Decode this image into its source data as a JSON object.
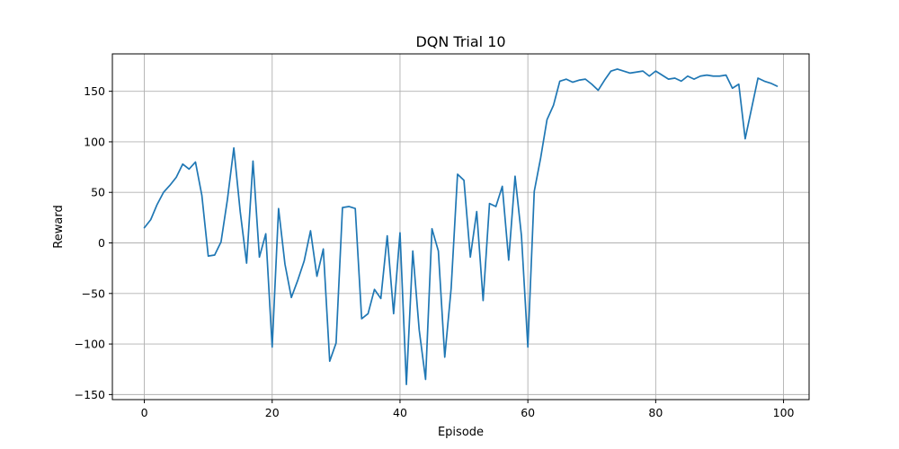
{
  "chart_data": {
    "type": "line",
    "title": "DQN Trial 10",
    "xlabel": "Episode",
    "ylabel": "Reward",
    "xlim": [
      -5,
      104
    ],
    "ylim": [
      -155,
      187
    ],
    "xticks": [
      0,
      20,
      40,
      60,
      80,
      100
    ],
    "yticks": [
      -150,
      -100,
      -50,
      0,
      50,
      100,
      150
    ],
    "grid": true,
    "series": [
      {
        "color": "#1f77b4",
        "x": [
          0,
          1,
          2,
          3,
          4,
          5,
          6,
          7,
          8,
          9,
          10,
          11,
          12,
          13,
          14,
          15,
          16,
          17,
          18,
          19,
          20,
          21,
          22,
          23,
          24,
          25,
          26,
          27,
          28,
          29,
          30,
          31,
          32,
          33,
          34,
          35,
          36,
          37,
          38,
          39,
          40,
          41,
          42,
          43,
          44,
          45,
          46,
          47,
          48,
          49,
          50,
          51,
          52,
          53,
          54,
          55,
          56,
          57,
          58,
          59,
          60,
          61,
          62,
          63,
          64,
          65,
          66,
          67,
          68,
          69,
          70,
          71,
          72,
          73,
          74,
          75,
          76,
          77,
          78,
          79,
          80,
          81,
          82,
          83,
          84,
          85,
          86,
          87,
          88,
          89,
          90,
          91,
          92,
          93,
          94,
          95,
          96,
          97,
          98,
          99
        ],
        "y": [
          15,
          23,
          38,
          50,
          57,
          65,
          78,
          73,
          80,
          47,
          -13,
          -12,
          1,
          43,
          94,
          31,
          -20,
          81,
          -14,
          9,
          -103,
          34,
          -21,
          -54,
          -37,
          -18,
          12,
          -33,
          -6,
          -117,
          -99,
          35,
          36,
          34,
          -75,
          -70,
          -46,
          -55,
          7,
          -70,
          10,
          -140,
          -8,
          -86,
          -135,
          14,
          -8,
          -113,
          -45,
          68,
          62,
          -14,
          31,
          -57,
          39,
          36,
          56,
          -17,
          66,
          7,
          -103,
          51,
          84,
          122,
          136,
          160,
          162,
          159,
          161,
          162,
          157,
          151,
          161,
          170,
          172,
          170,
          168,
          169,
          170,
          165,
          170,
          166,
          162,
          163,
          160,
          165,
          162,
          165,
          166,
          165,
          165,
          166,
          153,
          157,
          103,
          133,
          163,
          160,
          158,
          155
        ]
      }
    ]
  }
}
